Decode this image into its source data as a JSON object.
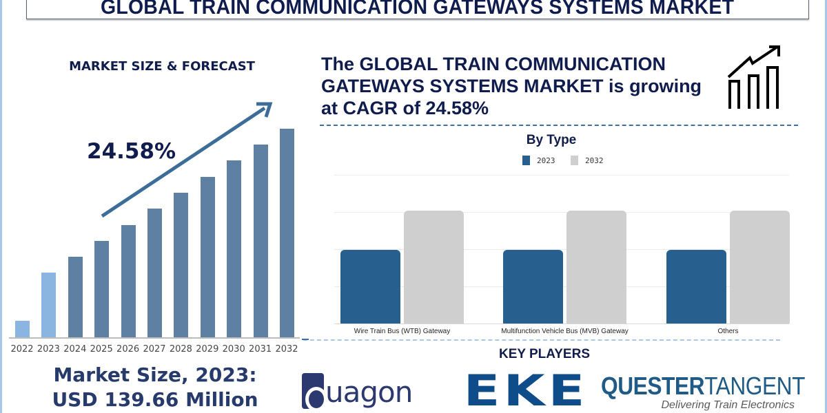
{
  "title": "GLOBAL TRAIN COMMUNICATION GATEWAYS SYSTEMS MARKET",
  "left_panel": {
    "heading": "MARKET SIZE & FORECAST",
    "cagr_label": "24.58%",
    "market_size_line1": "Market Size, 2023:",
    "market_size_line2": "USD 139.66 Million"
  },
  "right_panel": {
    "headline_line1": "The GLOBAL TRAIN COMMUNICATION",
    "headline_line2": "GATEWAYS SYSTEMS MARKET is growing",
    "headline_line3": "at CAGR of 24.58%",
    "icon": "growth-chart-icon",
    "by_type_title": "By Type",
    "legend": [
      {
        "label": "2023",
        "color": "#275f8e"
      },
      {
        "label": "2032",
        "color": "#cfcfcf"
      }
    ],
    "categories": [
      "Wire Train Bus (WTB) Gateway",
      "Multifunction Vehicle Bus (MVB) Gateway",
      "Others"
    ],
    "key_players_title": "KEY PLAYERS",
    "key_players": [
      {
        "name": "duagon",
        "text": "uagon"
      },
      {
        "name": "EKE",
        "text": "EKE"
      },
      {
        "name": "QuesterTangent",
        "text_a": "QUESTER",
        "text_b": "TANGENT",
        "tagline": "Delivering Train Electronics"
      }
    ]
  },
  "colors": {
    "navy_text": "#0f1c4d",
    "bar_forecast": "#5e80a3",
    "bar_historical": "#8ab5e0",
    "type_2023": "#275f8e",
    "type_2032": "#cfcfcf",
    "accent_dash": "#3f6fa0"
  },
  "chart_data": [
    {
      "type": "bar",
      "title": "MARKET SIZE & FORECAST",
      "categories": [
        "2022",
        "2023",
        "2024",
        "2025",
        "2026",
        "2027",
        "2028",
        "2029",
        "2030",
        "2031",
        "2032"
      ],
      "values": [
        24,
        94,
        117,
        140,
        163,
        187,
        210,
        233,
        257,
        280,
        303
      ],
      "value_unit": "relative bar height (px, no axis shown)",
      "historical": [
        "2022",
        "2023"
      ],
      "annotation": "24.58%",
      "xlabel": "",
      "ylabel": "",
      "grid": false
    },
    {
      "type": "bar",
      "title": "By Type",
      "categories": [
        "Wire Train Bus (WTB) Gateway",
        "Multifunction Vehicle Bus (MVB) Gateway",
        "Others"
      ],
      "series": [
        {
          "name": "2023",
          "values": [
            2,
            2,
            2
          ]
        },
        {
          "name": "2032",
          "values": [
            3,
            3,
            3
          ]
        }
      ],
      "ylim": [
        0,
        4
      ],
      "value_unit": "relative (gridline units, no axis labels)",
      "legend_position": "top",
      "grid": true
    }
  ]
}
